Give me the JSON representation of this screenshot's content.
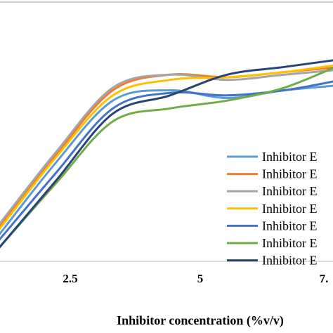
{
  "chart_data": {
    "type": "line",
    "xlabel": "Inhibitor concentration (%v/v)",
    "ylabel": "",
    "title": "",
    "x_ticks": [
      "2.5",
      "5",
      "7."
    ],
    "xlim": [
      0,
      7.5
    ],
    "ylim": [
      0,
      100
    ],
    "grid": false,
    "legend_position": "right",
    "series": [
      {
        "name": "Inhibitor E",
        "color": "#5b9bd5",
        "x": [
          0,
          1.25,
          2.5,
          3.75,
          5,
          6.25,
          7.5
        ],
        "y": [
          10,
          38,
          62,
          66,
          63,
          66,
          68
        ]
      },
      {
        "name": "Inhibitor E",
        "color": "#ed7d31",
        "x": [
          0,
          1.25,
          2.5,
          3.75,
          5,
          6.25,
          7.5
        ],
        "y": [
          13,
          41,
          66,
          72,
          71,
          73,
          75
        ]
      },
      {
        "name": "Inhibitor E",
        "color": "#a5a5a5",
        "x": [
          0,
          1.25,
          2.5,
          3.75,
          5,
          6.25,
          7.5
        ],
        "y": [
          14,
          42,
          67,
          72,
          70,
          72,
          74
        ]
      },
      {
        "name": "Inhibitor E",
        "color": "#ffc000",
        "x": [
          0,
          1.25,
          2.5,
          3.75,
          5,
          6.25,
          7.5
        ],
        "y": [
          12,
          40,
          64,
          70,
          71,
          73,
          76
        ]
      },
      {
        "name": "Inhibitor E",
        "color": "#4472c4",
        "x": [
          0,
          1.25,
          2.5,
          3.75,
          5,
          6.25,
          7.5
        ],
        "y": [
          8,
          34,
          59,
          65,
          64,
          66,
          70
        ]
      },
      {
        "name": "Inhibitor E",
        "color": "#70ad47",
        "x": [
          0,
          1.25,
          2.5,
          3.75,
          5,
          6.25,
          7.5
        ],
        "y": [
          5,
          30,
          54,
          59,
          62,
          67,
          76
        ]
      },
      {
        "name": "Inhibitor E",
        "color": "#264478",
        "x": [
          0,
          1.25,
          2.5,
          3.75,
          5,
          6.25,
          7.5
        ],
        "y": [
          5,
          31,
          57,
          64,
          72,
          75,
          78
        ]
      }
    ]
  }
}
